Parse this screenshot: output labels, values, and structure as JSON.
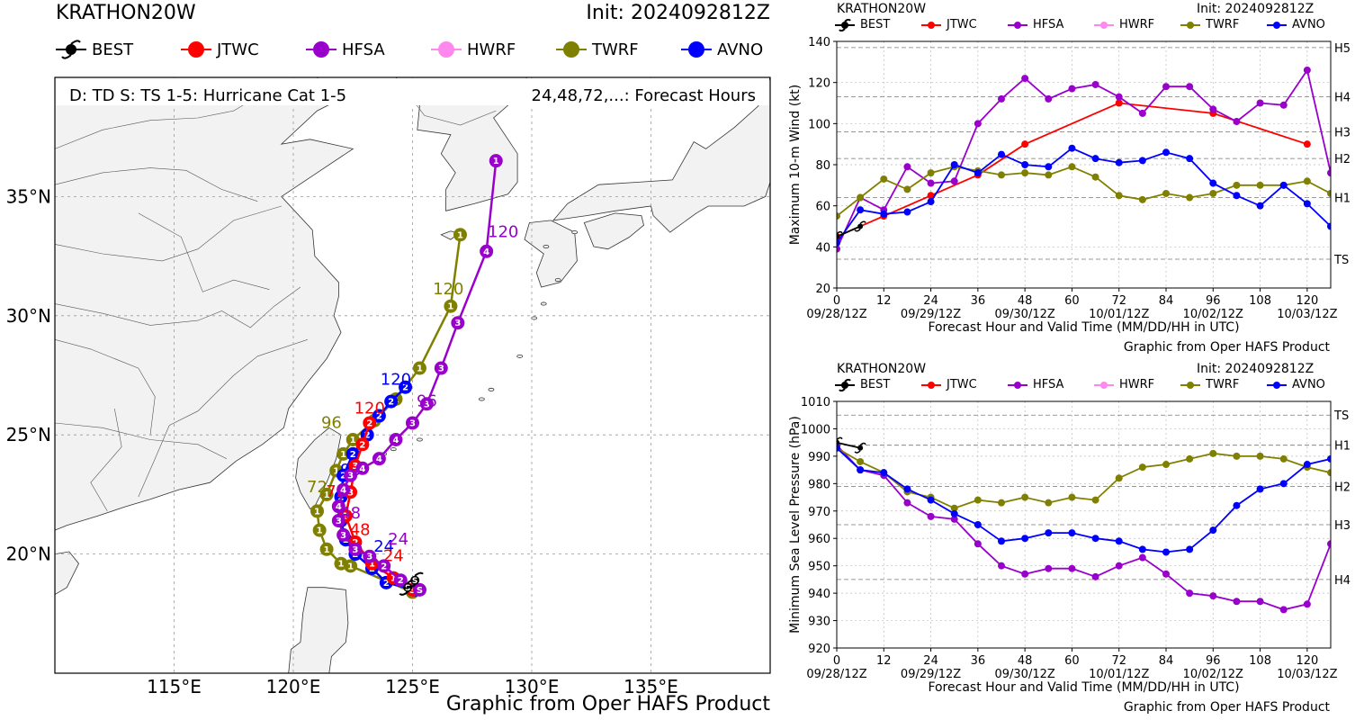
{
  "storm": "KRATHON20W",
  "init": "Init: 2024092812Z",
  "credit": "Graphic from Oper HAFS Product",
  "map": {
    "info_left": "D: TD  S: TS  1-5: Hurricane Cat 1-5",
    "info_right": "24,48,72,...: Forecast Hours",
    "lon_ticks": [
      {
        "lon": 115,
        "label": "115°E"
      },
      {
        "lon": 120,
        "label": "120°E"
      },
      {
        "lon": 125,
        "label": "125°E"
      },
      {
        "lon": 130,
        "label": "130°E"
      },
      {
        "lon": 135,
        "label": "135°E"
      }
    ],
    "lat_ticks": [
      {
        "lat": 20,
        "label": "20°N"
      },
      {
        "lat": 25,
        "label": "25°N"
      },
      {
        "lat": 30,
        "label": "30°N"
      },
      {
        "lat": 35,
        "label": "35°N"
      }
    ],
    "extent": {
      "lon": [
        110,
        140
      ],
      "lat": [
        15,
        40
      ]
    }
  },
  "legend": [
    {
      "name": "BEST",
      "color": "#000000",
      "icon": "hurricane-symbol-icon"
    },
    {
      "name": "JTWC",
      "color": "#ff0000",
      "icon": "circle-marker-icon"
    },
    {
      "name": "HFSA",
      "color": "#9900cc",
      "icon": "circle-marker-icon"
    },
    {
      "name": "HWRF",
      "color": "#ff88ee",
      "icon": "circle-marker-icon"
    },
    {
      "name": "TWRF",
      "color": "#808000",
      "icon": "circle-marker-icon"
    },
    {
      "name": "AVNO",
      "color": "#0000ff",
      "icon": "circle-marker-icon"
    }
  ],
  "chart_data": [
    {
      "type": "track-map",
      "title": "KRATHON20W",
      "tracks": [
        {
          "name": "JTWC",
          "color": "#ff0000",
          "points": [
            [
              125.0,
              18.5,
              "S"
            ],
            [
              124.2,
              19.0,
              "1"
            ],
            [
              123.3,
              19.6,
              "1"
            ],
            [
              122.6,
              20.5,
              "2"
            ],
            [
              122.2,
              21.6,
              "3"
            ],
            [
              122.4,
              22.6,
              "3"
            ],
            [
              122.6,
              23.7,
              "3"
            ],
            [
              122.9,
              24.6,
              "2"
            ],
            [
              123.2,
              25.5,
              "2"
            ]
          ],
          "labels": [
            [
              124.2,
              19.7,
              "24"
            ],
            [
              122.8,
              20.8,
              "48"
            ],
            [
              121.8,
              22.4,
              "72"
            ],
            [
              123.2,
              25.9,
              "120"
            ]
          ]
        },
        {
          "name": "HFSA",
          "color": "#9900cc",
          "points": [
            [
              125.3,
              18.5,
              "S"
            ],
            [
              124.5,
              18.9,
              "2"
            ],
            [
              123.8,
              19.5,
              "2"
            ],
            [
              123.2,
              19.9,
              "3"
            ],
            [
              122.6,
              20.2,
              "3"
            ],
            [
              122.1,
              20.8,
              "3"
            ],
            [
              121.9,
              21.4,
              "3"
            ],
            [
              121.9,
              22.0,
              "4"
            ],
            [
              122.1,
              22.7,
              "4"
            ],
            [
              122.4,
              23.3,
              "3"
            ],
            [
              122.9,
              23.6,
              "4"
            ],
            [
              123.6,
              24.0,
              "4"
            ],
            [
              124.3,
              24.8,
              "4"
            ],
            [
              125.0,
              25.5,
              "3"
            ],
            [
              125.6,
              26.3,
              "3"
            ],
            [
              126.2,
              27.8,
              "3"
            ],
            [
              126.9,
              29.7,
              "3"
            ],
            [
              128.1,
              32.7,
              "4"
            ],
            [
              128.5,
              36.5,
              "1"
            ]
          ],
          "labels": [
            [
              124.4,
              20.4,
              "24"
            ],
            [
              122.4,
              21.5,
              "48"
            ],
            [
              125.6,
              26.2,
              "96"
            ],
            [
              128.8,
              33.3,
              "120"
            ]
          ]
        },
        {
          "name": "TWRF",
          "color": "#808000",
          "points": [
            [
              125.0,
              18.4,
              "S"
            ],
            [
              122.4,
              19.5,
              "1"
            ],
            [
              122.0,
              19.6,
              "1"
            ],
            [
              121.4,
              20.2,
              "1"
            ],
            [
              121.1,
              21.0,
              "1"
            ],
            [
              121.0,
              21.8,
              "1"
            ],
            [
              121.4,
              22.5,
              "1"
            ],
            [
              121.8,
              23.5,
              "1"
            ],
            [
              122.1,
              24.2,
              "1"
            ],
            [
              122.5,
              24.8,
              "1"
            ],
            [
              123.4,
              25.6,
              "1"
            ],
            [
              124.3,
              26.5,
              "1"
            ],
            [
              125.3,
              27.8,
              "1"
            ],
            [
              126.6,
              30.4,
              "1"
            ],
            [
              127.0,
              33.4,
              "1"
            ]
          ],
          "labels": [
            [
              121.0,
              22.6,
              "72"
            ],
            [
              121.6,
              25.3,
              "96"
            ],
            [
              126.5,
              30.9,
              "120"
            ]
          ]
        },
        {
          "name": "AVNO",
          "color": "#0000ff",
          "points": [
            [
              125.1,
              18.5,
              "S"
            ],
            [
              123.9,
              18.8,
              "2"
            ],
            [
              123.3,
              19.4,
              "2"
            ],
            [
              122.6,
              20.0,
              "2"
            ],
            [
              122.2,
              20.6,
              "2"
            ],
            [
              122.0,
              21.4,
              "2"
            ],
            [
              122.0,
              22.4,
              "2"
            ],
            [
              122.1,
              23.3,
              "2"
            ],
            [
              122.5,
              24.2,
              "2"
            ],
            [
              123.1,
              25.0,
              "2"
            ],
            [
              123.6,
              25.8,
              "2"
            ],
            [
              124.1,
              26.4,
              "2"
            ],
            [
              124.7,
              27.0,
              "2"
            ]
          ],
          "labels": [
            [
              123.8,
              20.1,
              "24"
            ],
            [
              122.4,
              23.3,
              "96"
            ],
            [
              124.3,
              27.1,
              "120"
            ]
          ]
        },
        {
          "name": "BEST",
          "color": "#000000",
          "points": [
            [
              124.8,
              18.6,
              "S"
            ],
            [
              125.1,
              18.9,
              "S"
            ]
          ],
          "labels": []
        }
      ]
    },
    {
      "type": "line",
      "title": "KRATHON20W",
      "xlabel": "Forecast Hour and Valid Time (MM/DD/HH in UTC)",
      "ylabel": "Maximum 10-m Wind (kt)",
      "xlim": [
        0,
        126
      ],
      "ylim": [
        20,
        140
      ],
      "x_ticks": [
        0,
        12,
        24,
        36,
        48,
        60,
        72,
        84,
        96,
        108,
        120
      ],
      "y_ticks": [
        20,
        40,
        60,
        80,
        100,
        120,
        140
      ],
      "date_ticks": [
        {
          "x": 0,
          "label": "09/28/12Z"
        },
        {
          "x": 24,
          "label": "09/29/12Z"
        },
        {
          "x": 48,
          "label": "09/30/12Z"
        },
        {
          "x": 72,
          "label": "10/01/12Z"
        },
        {
          "x": 96,
          "label": "10/02/12Z"
        },
        {
          "x": 120,
          "label": "10/03/12Z"
        }
      ],
      "category_lines": [
        {
          "y": 34,
          "label": "TS"
        },
        {
          "y": 64,
          "label": "H1"
        },
        {
          "y": 83,
          "label": "H2"
        },
        {
          "y": 96,
          "label": "H3"
        },
        {
          "y": 113,
          "label": "H4"
        },
        {
          "y": 137,
          "label": "H5"
        }
      ],
      "series": [
        {
          "name": "JTWC",
          "color": "#ff0000",
          "x": [
            0,
            12,
            24,
            36,
            48,
            72,
            96,
            120
          ],
          "y": [
            45,
            55,
            65,
            75,
            90,
            110,
            105,
            90
          ]
        },
        {
          "name": "HFSA",
          "color": "#9900cc",
          "x": [
            0,
            6,
            12,
            18,
            24,
            30,
            36,
            42,
            48,
            54,
            60,
            66,
            72,
            78,
            84,
            90,
            96,
            102,
            108,
            114,
            120,
            126
          ],
          "y": [
            39,
            64,
            58,
            79,
            71,
            72,
            100,
            112,
            122,
            112,
            117,
            119,
            113,
            105,
            118,
            118,
            107,
            101,
            110,
            109,
            126,
            76
          ]
        },
        {
          "name": "TWRF",
          "color": "#808000",
          "x": [
            0,
            6,
            12,
            18,
            24,
            30,
            36,
            42,
            48,
            54,
            60,
            66,
            72,
            78,
            84,
            90,
            96,
            102,
            108,
            114,
            120,
            126
          ],
          "y": [
            55,
            64,
            73,
            68,
            76,
            79,
            77,
            75,
            76,
            75,
            79,
            74,
            65,
            63,
            66,
            64,
            66,
            70,
            70,
            70,
            72,
            66
          ]
        },
        {
          "name": "AVNO",
          "color": "#0000ff",
          "x": [
            0,
            6,
            12,
            18,
            24,
            30,
            36,
            42,
            48,
            54,
            60,
            66,
            72,
            78,
            84,
            90,
            96,
            102,
            108,
            114,
            120,
            126
          ],
          "y": [
            42,
            58,
            56,
            57,
            62,
            80,
            76,
            85,
            80,
            79,
            88,
            83,
            81,
            82,
            86,
            83,
            71,
            65,
            60,
            70,
            61,
            50
          ]
        },
        {
          "name": "BEST",
          "color": "#000000",
          "x": [
            0,
            6
          ],
          "y": [
            45,
            50
          ]
        }
      ]
    },
    {
      "type": "line",
      "title": "KRATHON20W",
      "xlabel": "Forecast Hour and Valid Time (MM/DD/HH in UTC)",
      "ylabel": "Minimum Sea Level Pressure (hPa)",
      "xlim": [
        0,
        126
      ],
      "ylim": [
        920,
        1010
      ],
      "x_ticks": [
        0,
        12,
        24,
        36,
        48,
        60,
        72,
        84,
        96,
        108,
        120
      ],
      "y_ticks": [
        920,
        930,
        940,
        950,
        960,
        970,
        980,
        990,
        1000,
        1010
      ],
      "date_ticks": [
        {
          "x": 0,
          "label": "09/28/12Z"
        },
        {
          "x": 24,
          "label": "09/29/12Z"
        },
        {
          "x": 48,
          "label": "09/30/12Z"
        },
        {
          "x": 72,
          "label": "10/01/12Z"
        },
        {
          "x": 96,
          "label": "10/02/12Z"
        },
        {
          "x": 120,
          "label": "10/03/12Z"
        }
      ],
      "category_lines": [
        {
          "y": 1005,
          "label": "TS"
        },
        {
          "y": 994,
          "label": "H1"
        },
        {
          "y": 979,
          "label": "H2"
        },
        {
          "y": 965,
          "label": "H3"
        },
        {
          "y": 945,
          "label": "H4"
        }
      ],
      "series": [
        {
          "name": "JTWC",
          "color": "#ff0000",
          "x": [],
          "y": []
        },
        {
          "name": "HFSA",
          "color": "#9900cc",
          "x": [
            0,
            6,
            12,
            18,
            24,
            30,
            36,
            42,
            48,
            54,
            60,
            66,
            72,
            78,
            84,
            90,
            96,
            102,
            108,
            114,
            120,
            126
          ],
          "y": [
            994,
            985,
            983,
            973,
            968,
            967,
            958,
            950,
            947,
            949,
            949,
            946,
            950,
            953,
            947,
            940,
            939,
            937,
            937,
            934,
            936,
            958
          ]
        },
        {
          "name": "TWRF",
          "color": "#808000",
          "x": [
            0,
            6,
            12,
            18,
            24,
            30,
            36,
            42,
            48,
            54,
            60,
            66,
            72,
            78,
            84,
            90,
            96,
            102,
            108,
            114,
            120,
            126
          ],
          "y": [
            993,
            988,
            984,
            977,
            975,
            971,
            974,
            973,
            975,
            973,
            975,
            974,
            982,
            986,
            987,
            989,
            991,
            990,
            990,
            989,
            986,
            984
          ]
        },
        {
          "name": "AVNO",
          "color": "#0000ff",
          "x": [
            0,
            6,
            12,
            18,
            24,
            30,
            36,
            42,
            48,
            54,
            60,
            66,
            72,
            78,
            84,
            90,
            96,
            102,
            108,
            114,
            120,
            126
          ],
          "y": [
            993,
            985,
            984,
            978,
            974,
            969,
            965,
            959,
            960,
            962,
            962,
            960,
            959,
            956,
            955,
            956,
            963,
            972,
            978,
            980,
            987,
            989
          ]
        },
        {
          "name": "BEST",
          "color": "#000000",
          "x": [
            0,
            6
          ],
          "y": [
            995,
            993
          ]
        }
      ]
    }
  ]
}
